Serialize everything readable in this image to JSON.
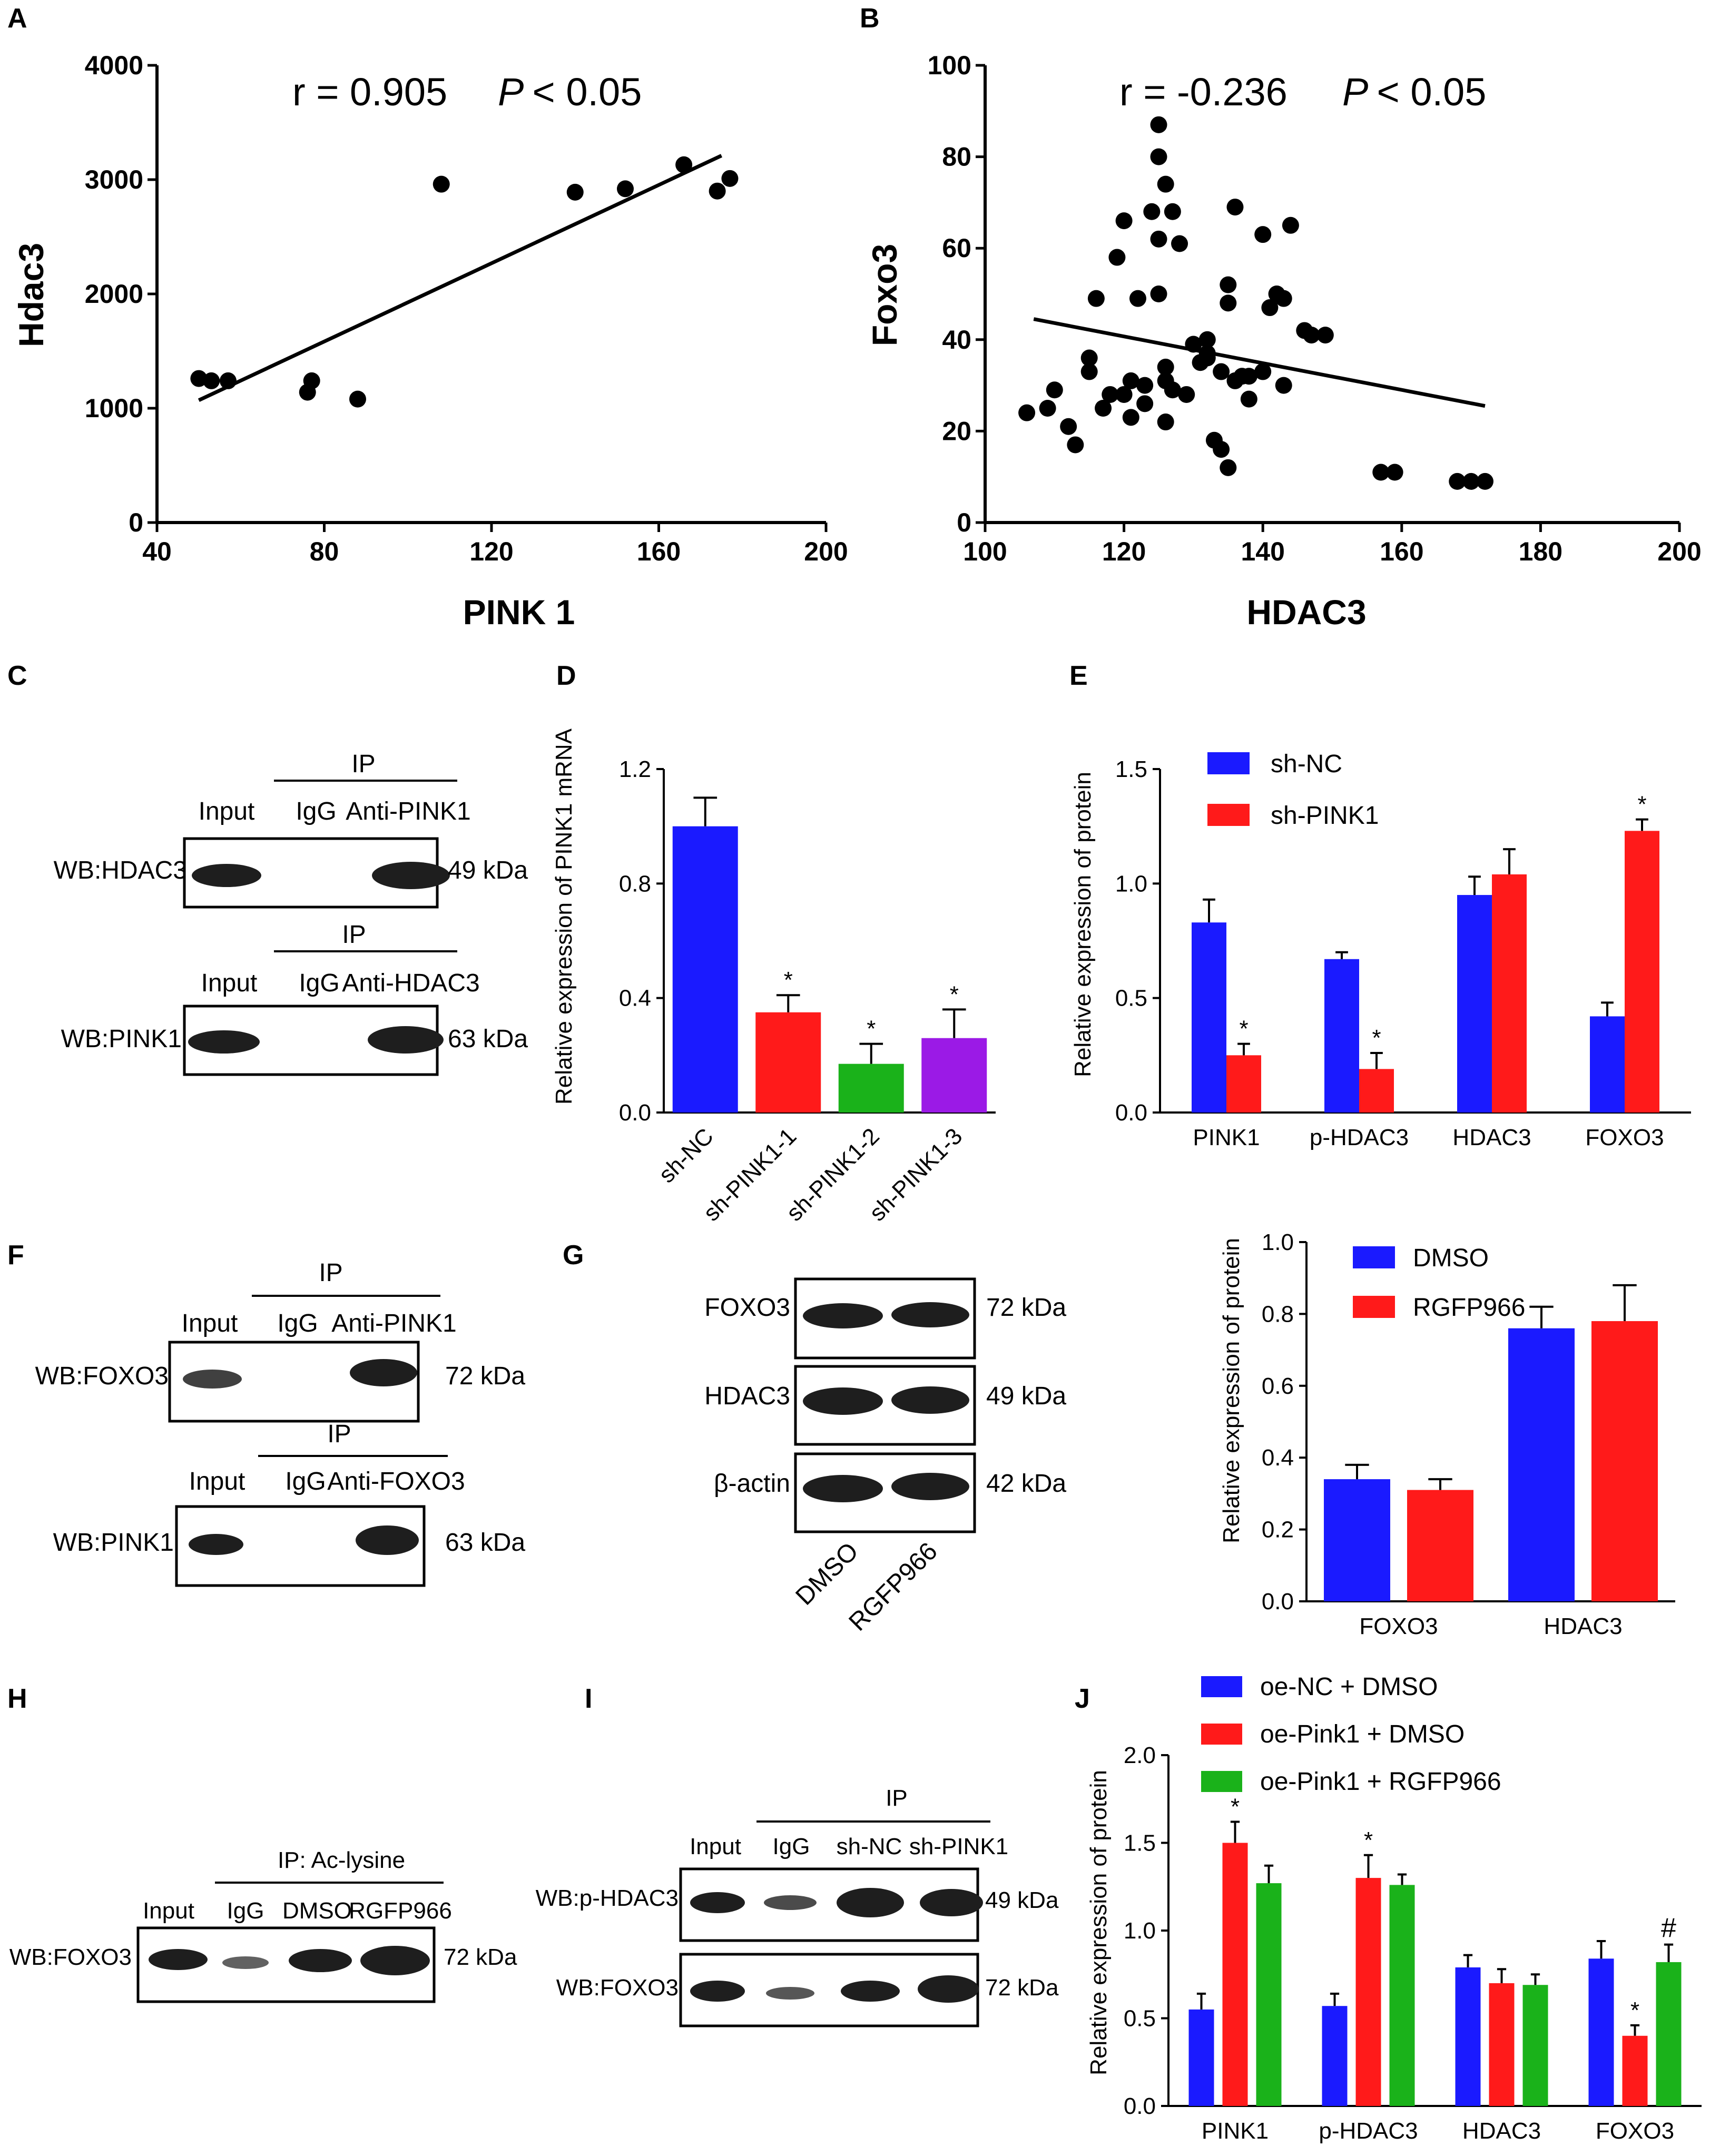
{
  "panels": {
    "A": "A",
    "B": "B",
    "C": "C",
    "D": "D",
    "E": "E",
    "F": "F",
    "G": "G",
    "H": "H",
    "I": "I",
    "J": "J"
  },
  "chart_data": [
    {
      "id": "A",
      "type": "scatter",
      "xlabel": "PINK 1",
      "ylabel": "Hdac3",
      "xlim": [
        40,
        200
      ],
      "ylim": [
        0,
        4000
      ],
      "xticks": [
        "40",
        "80",
        "120",
        "160",
        "200"
      ],
      "yticks": [
        "0",
        "1000",
        "2000",
        "3000",
        "4000"
      ],
      "annotation": {
        "r": "r = 0.905",
        "p": "P",
        "p_rest": " < 0.05"
      },
      "points": [
        [
          50,
          1260
        ],
        [
          53,
          1240
        ],
        [
          57,
          1240
        ],
        [
          76,
          1140
        ],
        [
          77,
          1240
        ],
        [
          88,
          1080
        ],
        [
          108,
          2960
        ],
        [
          140,
          2890
        ],
        [
          152,
          2920
        ],
        [
          166,
          3130
        ],
        [
          174,
          2900
        ],
        [
          177,
          3010
        ]
      ],
      "fit": [
        [
          50,
          1070
        ],
        [
          175,
          3210
        ]
      ]
    },
    {
      "id": "B",
      "type": "scatter",
      "xlabel": "HDAC3",
      "ylabel": "Foxo3",
      "xlim": [
        100,
        200
      ],
      "ylim": [
        0,
        100
      ],
      "xticks": [
        "100",
        "120",
        "140",
        "160",
        "180",
        "200"
      ],
      "yticks": [
        "0",
        "20",
        "40",
        "60",
        "80",
        "100"
      ],
      "annotation": {
        "r": "r = -0.236",
        "p": "P",
        "p_rest": " < 0.05"
      },
      "points": [
        [
          106,
          24
        ],
        [
          109,
          25
        ],
        [
          110,
          29
        ],
        [
          112,
          21
        ],
        [
          113,
          17
        ],
        [
          115,
          36
        ],
        [
          115,
          33
        ],
        [
          116,
          49
        ],
        [
          117,
          25
        ],
        [
          118,
          28
        ],
        [
          119,
          58
        ],
        [
          120,
          66
        ],
        [
          120,
          28
        ],
        [
          121,
          31
        ],
        [
          121,
          23
        ],
        [
          122,
          49
        ],
        [
          123,
          30
        ],
        [
          123,
          26
        ],
        [
          124,
          68
        ],
        [
          125,
          80
        ],
        [
          125,
          87
        ],
        [
          125,
          50
        ],
        [
          125,
          62
        ],
        [
          126,
          74
        ],
        [
          126,
          34
        ],
        [
          126,
          31
        ],
        [
          126,
          22
        ],
        [
          127,
          68
        ],
        [
          127,
          29
        ],
        [
          128,
          61
        ],
        [
          129,
          28
        ],
        [
          130,
          39
        ],
        [
          131,
          35
        ],
        [
          132,
          36
        ],
        [
          132,
          37
        ],
        [
          132,
          40
        ],
        [
          133,
          18
        ],
        [
          134,
          33
        ],
        [
          134,
          16
        ],
        [
          135,
          12
        ],
        [
          135,
          52
        ],
        [
          135,
          48
        ],
        [
          136,
          31
        ],
        [
          136,
          69
        ],
        [
          137,
          32
        ],
        [
          138,
          27
        ],
        [
          138,
          32
        ],
        [
          140,
          33
        ],
        [
          140,
          63
        ],
        [
          141,
          47
        ],
        [
          142,
          50
        ],
        [
          143,
          49
        ],
        [
          143,
          30
        ],
        [
          144,
          65
        ],
        [
          146,
          42
        ],
        [
          147,
          41
        ],
        [
          149,
          41
        ],
        [
          157,
          11
        ],
        [
          159,
          11
        ],
        [
          168,
          9
        ],
        [
          170,
          9
        ],
        [
          172,
          9
        ]
      ],
      "fit": [
        [
          107,
          44.5
        ],
        [
          172,
          25.5
        ]
      ]
    },
    {
      "id": "D",
      "type": "bar",
      "ylabel": "Relative expression of PINK1 mRNA",
      "ylim": [
        0,
        1.2
      ],
      "yticks": [
        "0.0",
        "0.4",
        "0.8",
        "1.2"
      ],
      "categories": [
        "sh-NC",
        "sh-PINK1-1",
        "sh-PINK1-2",
        "sh-PINK1-3"
      ],
      "values": [
        1.0,
        0.35,
        0.17,
        0.26
      ],
      "errors": [
        0.1,
        0.06,
        0.07,
        0.1
      ],
      "sig": [
        "",
        "*",
        "*",
        "*"
      ],
      "colors": [
        "#1a1aff",
        "#ff1a1a",
        "#1ab21a",
        "#9b1ae6"
      ]
    },
    {
      "id": "E",
      "type": "bar",
      "ylabel": "Relative expression of protein",
      "ylim": [
        0,
        1.5
      ],
      "yticks": [
        "0.0",
        "0.5",
        "1.0",
        "1.5"
      ],
      "categories": [
        "PINK1",
        "p-HDAC3",
        "HDAC3",
        "FOXO3"
      ],
      "series": [
        {
          "name": "sh-NC",
          "color": "#1a1aff",
          "values": [
            0.83,
            0.67,
            0.95,
            0.42
          ],
          "errors": [
            0.1,
            0.03,
            0.08,
            0.06
          ],
          "sig": [
            "",
            "",
            "",
            ""
          ]
        },
        {
          "name": "sh-PINK1",
          "color": "#ff1a1a",
          "values": [
            0.25,
            0.19,
            1.04,
            1.23
          ],
          "errors": [
            0.05,
            0.07,
            0.11,
            0.05
          ],
          "sig": [
            "*",
            "*",
            "",
            "*"
          ]
        }
      ]
    },
    {
      "id": "G",
      "type": "bar",
      "ylabel": "Relative expression of protein",
      "ylim": [
        0,
        1.0
      ],
      "yticks": [
        "0.0",
        "0.2",
        "0.4",
        "0.6",
        "0.8",
        "1.0"
      ],
      "categories": [
        "FOXO3",
        "HDAC3"
      ],
      "series": [
        {
          "name": "DMSO",
          "color": "#1a1aff",
          "values": [
            0.34,
            0.76
          ],
          "errors": [
            0.04,
            0.06
          ],
          "sig": [
            "",
            ""
          ]
        },
        {
          "name": "RGFP966",
          "color": "#ff1a1a",
          "values": [
            0.31,
            0.78
          ],
          "errors": [
            0.03,
            0.1
          ],
          "sig": [
            "",
            ""
          ]
        }
      ]
    },
    {
      "id": "J",
      "type": "bar",
      "ylabel": "Relative expression of protein",
      "ylim": [
        0,
        2.0
      ],
      "yticks": [
        "0.0",
        "0.5",
        "1.0",
        "1.5",
        "2.0"
      ],
      "categories": [
        "PINK1",
        "p-HDAC3",
        "HDAC3",
        "FOXO3"
      ],
      "series": [
        {
          "name": "oe-NC + DMSO",
          "color": "#1a1aff",
          "values": [
            0.55,
            0.57,
            0.79,
            0.84
          ],
          "errors": [
            0.09,
            0.07,
            0.07,
            0.1
          ],
          "sig": [
            "",
            "",
            "",
            ""
          ]
        },
        {
          "name": "oe-Pink1 + DMSO",
          "color": "#ff1a1a",
          "values": [
            1.5,
            1.3,
            0.7,
            0.4
          ],
          "errors": [
            0.12,
            0.13,
            0.08,
            0.06
          ],
          "sig": [
            "*",
            "*",
            "",
            "*"
          ]
        },
        {
          "name": "oe-Pink1 + RGFP966",
          "color": "#1ab21a",
          "values": [
            1.27,
            1.26,
            0.69,
            0.82
          ],
          "errors": [
            0.1,
            0.06,
            0.06,
            0.1
          ],
          "sig": [
            "",
            "",
            "",
            "#"
          ]
        }
      ]
    }
  ],
  "blots": {
    "C": {
      "top": {
        "ip": "IP",
        "lanes": [
          "Input",
          "IgG",
          "Anti-PINK1"
        ],
        "wb": "WB:HDAC3",
        "kda": "49 kDa"
      },
      "bottom": {
        "ip": "IP",
        "lanes": [
          "Input",
          "IgG",
          "Anti-HDAC3"
        ],
        "wb": "WB:PINK1",
        "kda": "63 kDa"
      }
    },
    "F": {
      "top": {
        "ip": "IP",
        "lanes": [
          "Input",
          "IgG",
          "Anti-PINK1"
        ],
        "wb": "WB:FOXO3",
        "kda": "72 kDa"
      },
      "bottom": {
        "ip": "IP",
        "lanes": [
          "Input",
          "IgG",
          "Anti-FOXO3"
        ],
        "wb": "WB:PINK1",
        "kda": "63 kDa"
      }
    },
    "G": {
      "rows": [
        {
          "label": "FOXO3",
          "kda": "72 kDa"
        },
        {
          "label": "HDAC3",
          "kda": "49 kDa"
        },
        {
          "label": "β-actin",
          "kda": "42 kDa"
        }
      ],
      "lanes": [
        "DMSO",
        "RGFP966"
      ]
    },
    "H": {
      "ip": "IP: Ac-lysine",
      "lanes": [
        "Input",
        "IgG",
        "DMSO",
        "RGFP966"
      ],
      "wb": "WB:FOXO3",
      "kda": "72 kDa"
    },
    "I": {
      "ip": "IP",
      "lanes": [
        "Input",
        "IgG",
        "sh-NC",
        "sh-PINK1"
      ],
      "rows": [
        {
          "wb": "WB:p-HDAC3",
          "kda": "49 kDa"
        },
        {
          "wb": "WB:FOXO3",
          "kda": "72 kDa"
        }
      ]
    }
  }
}
